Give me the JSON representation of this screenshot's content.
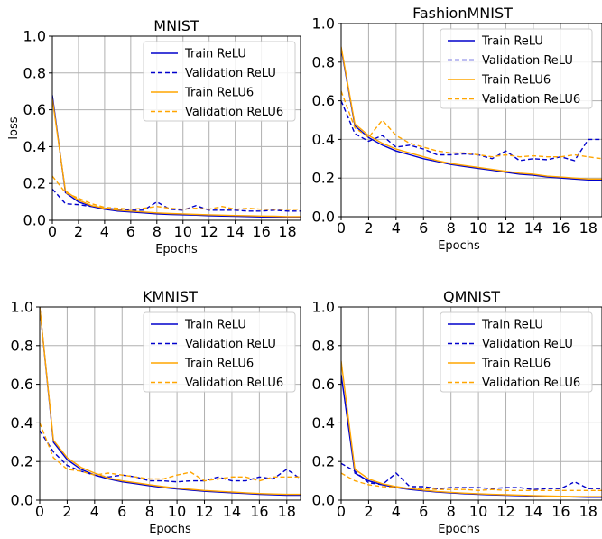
{
  "figure": {
    "colors": {
      "relu": "#0000cc",
      "relu6": "#ffa500",
      "grid": "#b0b0b0",
      "axis": "#000000"
    }
  },
  "chart_data": [
    {
      "type": "line",
      "title": "MNIST",
      "xlabel": "Epochs",
      "ylabel": "loss",
      "xlim": [
        0,
        19
      ],
      "ylim": [
        0,
        1.0
      ],
      "xticks": [
        "0",
        "2",
        "4",
        "6",
        "8",
        "10",
        "12",
        "14",
        "16",
        "18"
      ],
      "yticks": [
        "0.0",
        "0.2",
        "0.4",
        "0.6",
        "0.8",
        "1.0"
      ],
      "grid": true,
      "legend_position": "top-right",
      "x": [
        0,
        1,
        2,
        3,
        4,
        5,
        6,
        7,
        8,
        9,
        10,
        11,
        12,
        13,
        14,
        15,
        16,
        17,
        18,
        19
      ],
      "series": [
        {
          "name": "Train ReLU",
          "style": "solid",
          "color": "#0000cc",
          "values": [
            0.68,
            0.15,
            0.1,
            0.075,
            0.06,
            0.05,
            0.045,
            0.04,
            0.035,
            0.032,
            0.03,
            0.028,
            0.025,
            0.023,
            0.022,
            0.02,
            0.018,
            0.017,
            0.015,
            0.015
          ]
        },
        {
          "name": "Validation ReLU",
          "style": "dashed",
          "color": "#0000cc",
          "values": [
            0.17,
            0.09,
            0.085,
            0.075,
            0.065,
            0.06,
            0.055,
            0.055,
            0.1,
            0.06,
            0.055,
            0.08,
            0.055,
            0.055,
            0.055,
            0.05,
            0.05,
            0.055,
            0.05,
            0.05
          ]
        },
        {
          "name": "Train ReLU6",
          "style": "solid",
          "color": "#ffa500",
          "values": [
            0.66,
            0.16,
            0.11,
            0.08,
            0.065,
            0.055,
            0.05,
            0.045,
            0.04,
            0.037,
            0.035,
            0.032,
            0.03,
            0.028,
            0.026,
            0.025,
            0.023,
            0.022,
            0.02,
            0.02
          ]
        },
        {
          "name": "Validation ReLU6",
          "style": "dashed",
          "color": "#ffa500",
          "values": [
            0.24,
            0.15,
            0.12,
            0.09,
            0.07,
            0.065,
            0.06,
            0.065,
            0.075,
            0.065,
            0.06,
            0.065,
            0.06,
            0.075,
            0.06,
            0.065,
            0.06,
            0.06,
            0.06,
            0.06
          ]
        }
      ]
    },
    {
      "type": "line",
      "title": "FashionMNIST",
      "xlabel": "Epochs",
      "ylabel": "",
      "xlim": [
        0,
        19
      ],
      "ylim": [
        0,
        1.0
      ],
      "xticks": [
        "0",
        "2",
        "4",
        "6",
        "8",
        "10",
        "12",
        "14",
        "16",
        "18"
      ],
      "yticks": [
        "0.0",
        "0.2",
        "0.4",
        "0.6",
        "0.8",
        "1.0"
      ],
      "grid": true,
      "legend_position": "top-right",
      "x": [
        0,
        1,
        2,
        3,
        4,
        5,
        6,
        7,
        8,
        9,
        10,
        11,
        12,
        13,
        14,
        15,
        16,
        17,
        18,
        19
      ],
      "series": [
        {
          "name": "Train ReLU",
          "style": "solid",
          "color": "#0000cc",
          "values": [
            0.87,
            0.47,
            0.41,
            0.37,
            0.34,
            0.32,
            0.3,
            0.285,
            0.27,
            0.26,
            0.25,
            0.24,
            0.23,
            0.22,
            0.215,
            0.205,
            0.2,
            0.195,
            0.19,
            0.19
          ]
        },
        {
          "name": "Validation ReLU",
          "style": "dashed",
          "color": "#0000cc",
          "values": [
            0.6,
            0.43,
            0.39,
            0.42,
            0.36,
            0.37,
            0.35,
            0.32,
            0.32,
            0.325,
            0.32,
            0.3,
            0.34,
            0.29,
            0.3,
            0.295,
            0.31,
            0.29,
            0.4,
            0.4
          ]
        },
        {
          "name": "Train ReLU6",
          "style": "solid",
          "color": "#ffa500",
          "values": [
            0.88,
            0.48,
            0.42,
            0.38,
            0.35,
            0.33,
            0.31,
            0.29,
            0.275,
            0.265,
            0.255,
            0.245,
            0.235,
            0.225,
            0.22,
            0.21,
            0.205,
            0.2,
            0.195,
            0.195
          ]
        },
        {
          "name": "Validation ReLU6",
          "style": "dashed",
          "color": "#ffa500",
          "values": [
            0.65,
            0.46,
            0.41,
            0.5,
            0.42,
            0.38,
            0.36,
            0.34,
            0.33,
            0.33,
            0.32,
            0.31,
            0.32,
            0.31,
            0.315,
            0.31,
            0.31,
            0.32,
            0.31,
            0.3
          ]
        }
      ]
    },
    {
      "type": "line",
      "title": "KMNIST",
      "xlabel": "Epochs",
      "ylabel": "",
      "xlim": [
        0,
        19
      ],
      "ylim": [
        0,
        1.0
      ],
      "xticks": [
        "0",
        "2",
        "4",
        "6",
        "8",
        "10",
        "12",
        "14",
        "16",
        "18"
      ],
      "yticks": [
        "0.0",
        "0.2",
        "0.4",
        "0.6",
        "0.8",
        "1.0"
      ],
      "grid": true,
      "legend_position": "top-right",
      "x": [
        0,
        1,
        2,
        3,
        4,
        5,
        6,
        7,
        8,
        9,
        10,
        11,
        12,
        13,
        14,
        15,
        16,
        17,
        18,
        19
      ],
      "series": [
        {
          "name": "Train ReLU",
          "style": "solid",
          "color": "#0000cc",
          "values": [
            1.0,
            0.3,
            0.21,
            0.16,
            0.13,
            0.11,
            0.095,
            0.085,
            0.075,
            0.065,
            0.058,
            0.052,
            0.046,
            0.042,
            0.038,
            0.034,
            0.03,
            0.028,
            0.025,
            0.025
          ]
        },
        {
          "name": "Validation ReLU",
          "style": "dashed",
          "color": "#0000cc",
          "values": [
            0.36,
            0.25,
            0.18,
            0.15,
            0.13,
            0.12,
            0.13,
            0.12,
            0.1,
            0.1,
            0.095,
            0.1,
            0.1,
            0.12,
            0.1,
            0.1,
            0.12,
            0.11,
            0.16,
            0.11
          ]
        },
        {
          "name": "Train ReLU6",
          "style": "solid",
          "color": "#ffa500",
          "values": [
            1.0,
            0.31,
            0.22,
            0.17,
            0.14,
            0.115,
            0.1,
            0.09,
            0.08,
            0.07,
            0.062,
            0.056,
            0.05,
            0.046,
            0.042,
            0.038,
            0.034,
            0.032,
            0.03,
            0.03
          ]
        },
        {
          "name": "Validation ReLU6",
          "style": "dashed",
          "color": "#ffa500",
          "values": [
            0.4,
            0.22,
            0.16,
            0.15,
            0.13,
            0.14,
            0.13,
            0.12,
            0.11,
            0.11,
            0.13,
            0.145,
            0.1,
            0.11,
            0.12,
            0.12,
            0.1,
            0.12,
            0.12,
            0.12
          ]
        }
      ]
    },
    {
      "type": "line",
      "title": "QMNIST",
      "xlabel": "Epochs",
      "ylabel": "",
      "xlim": [
        0,
        19
      ],
      "ylim": [
        0,
        1.0
      ],
      "xticks": [
        "0",
        "2",
        "4",
        "6",
        "8",
        "10",
        "12",
        "14",
        "16",
        "18"
      ],
      "yticks": [
        "0.0",
        "0.2",
        "0.4",
        "0.6",
        "0.8",
        "1.0"
      ],
      "grid": true,
      "legend_position": "top-right",
      "x": [
        0,
        1,
        2,
        3,
        4,
        5,
        6,
        7,
        8,
        9,
        10,
        11,
        12,
        13,
        14,
        15,
        16,
        17,
        18,
        19
      ],
      "series": [
        {
          "name": "Train ReLU",
          "style": "solid",
          "color": "#0000cc",
          "values": [
            0.65,
            0.14,
            0.1,
            0.08,
            0.065,
            0.055,
            0.048,
            0.042,
            0.037,
            0.033,
            0.03,
            0.027,
            0.025,
            0.023,
            0.021,
            0.02,
            0.018,
            0.017,
            0.015,
            0.015
          ]
        },
        {
          "name": "Validation ReLU",
          "style": "dashed",
          "color": "#0000cc",
          "values": [
            0.19,
            0.15,
            0.09,
            0.08,
            0.14,
            0.07,
            0.07,
            0.06,
            0.065,
            0.065,
            0.065,
            0.06,
            0.065,
            0.065,
            0.055,
            0.06,
            0.06,
            0.095,
            0.06,
            0.06
          ]
        },
        {
          "name": "Train ReLU6",
          "style": "solid",
          "color": "#ffa500",
          "values": [
            0.72,
            0.16,
            0.11,
            0.085,
            0.07,
            0.06,
            0.052,
            0.045,
            0.04,
            0.036,
            0.033,
            0.03,
            0.028,
            0.026,
            0.024,
            0.022,
            0.02,
            0.019,
            0.018,
            0.018
          ]
        },
        {
          "name": "Validation ReLU6",
          "style": "dashed",
          "color": "#ffa500",
          "values": [
            0.14,
            0.1,
            0.08,
            0.07,
            0.065,
            0.06,
            0.06,
            0.055,
            0.055,
            0.055,
            0.05,
            0.055,
            0.05,
            0.05,
            0.05,
            0.05,
            0.05,
            0.05,
            0.05,
            0.05
          ]
        }
      ]
    }
  ]
}
